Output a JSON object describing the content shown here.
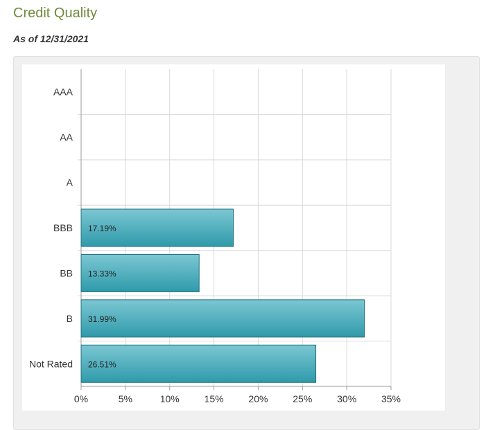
{
  "header": {
    "title": "Credit Quality",
    "subtitle": "As of 12/31/2021"
  },
  "colors": {
    "title": "#6e8a3c",
    "bar_fill_top": "#7cc7d3",
    "bar_fill_bottom": "#2f9aaa",
    "bar_stroke": "#1f6f7b",
    "grid": "#d9d9d9"
  },
  "chart_data": {
    "type": "bar",
    "orientation": "horizontal",
    "categories": [
      "AAA",
      "AA",
      "A",
      "BBB",
      "BB",
      "B",
      "Not Rated"
    ],
    "values": [
      null,
      null,
      null,
      17.19,
      13.33,
      31.99,
      26.51
    ],
    "data_labels": [
      "",
      "",
      "",
      "17.19%",
      "13.33%",
      "31.99%",
      "26.51%"
    ],
    "xlim": [
      0,
      35
    ],
    "x_ticks": [
      0,
      5,
      10,
      15,
      20,
      25,
      30,
      35
    ],
    "x_tick_labels": [
      "0%",
      "5%",
      "10%",
      "15%",
      "20%",
      "25%",
      "30%",
      "35%"
    ],
    "grid": true,
    "legend": "none"
  }
}
